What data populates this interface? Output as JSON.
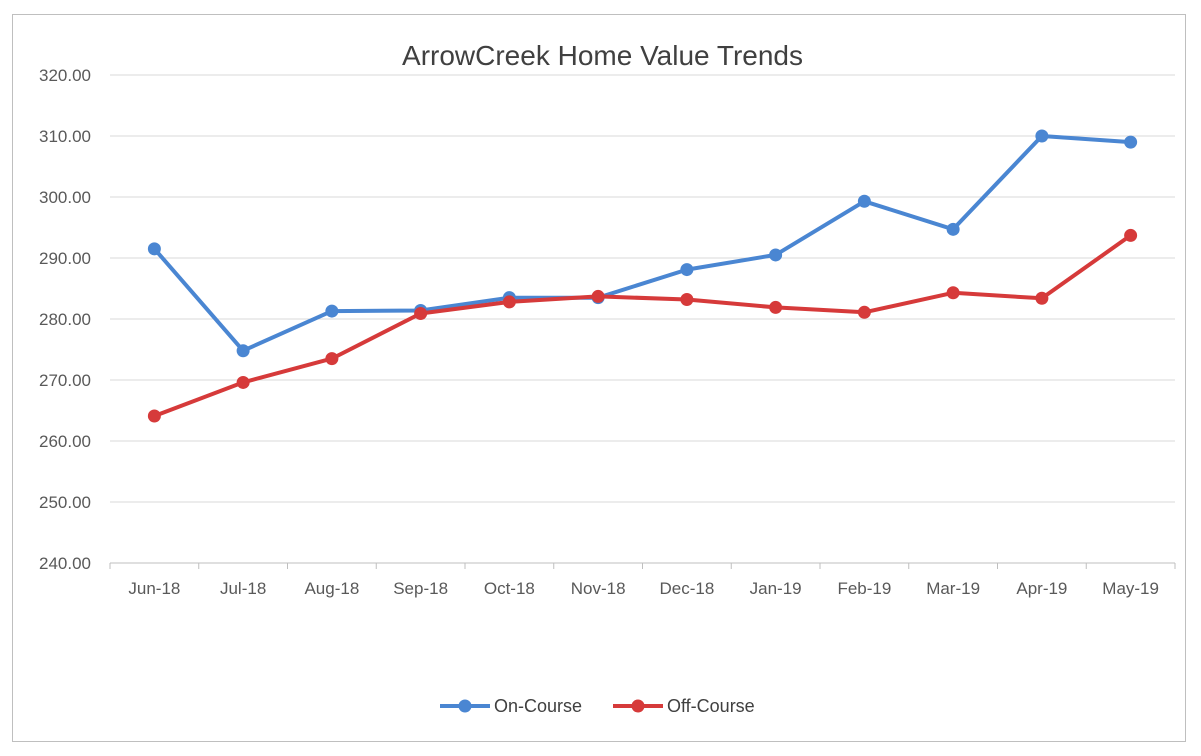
{
  "chart_data": {
    "type": "line",
    "title": "ArrowCreek Home Value Trends",
    "xlabel": "",
    "ylabel": "",
    "categories": [
      "Jun-18",
      "Jul-18",
      "Aug-18",
      "Sep-18",
      "Oct-18",
      "Nov-18",
      "Dec-18",
      "Jan-19",
      "Feb-19",
      "Mar-19",
      "Apr-19",
      "May-19"
    ],
    "y_ticks": [
      "240.00",
      "250.00",
      "260.00",
      "270.00",
      "280.00",
      "290.00",
      "300.00",
      "310.00",
      "320.00"
    ],
    "ylim": [
      240,
      320
    ],
    "grid": true,
    "legend_position": "bottom",
    "series": [
      {
        "name": "On-Course",
        "color": "#4a86d2",
        "values": [
          291.5,
          274.8,
          281.3,
          281.4,
          283.5,
          283.5,
          288.1,
          290.5,
          299.3,
          294.7,
          310.0,
          309.0
        ]
      },
      {
        "name": "Off-Course",
        "color": "#d63a3a",
        "values": [
          264.1,
          269.6,
          273.5,
          280.9,
          282.8,
          283.7,
          283.2,
          281.9,
          281.1,
          284.3,
          283.4,
          293.7
        ]
      }
    ]
  }
}
